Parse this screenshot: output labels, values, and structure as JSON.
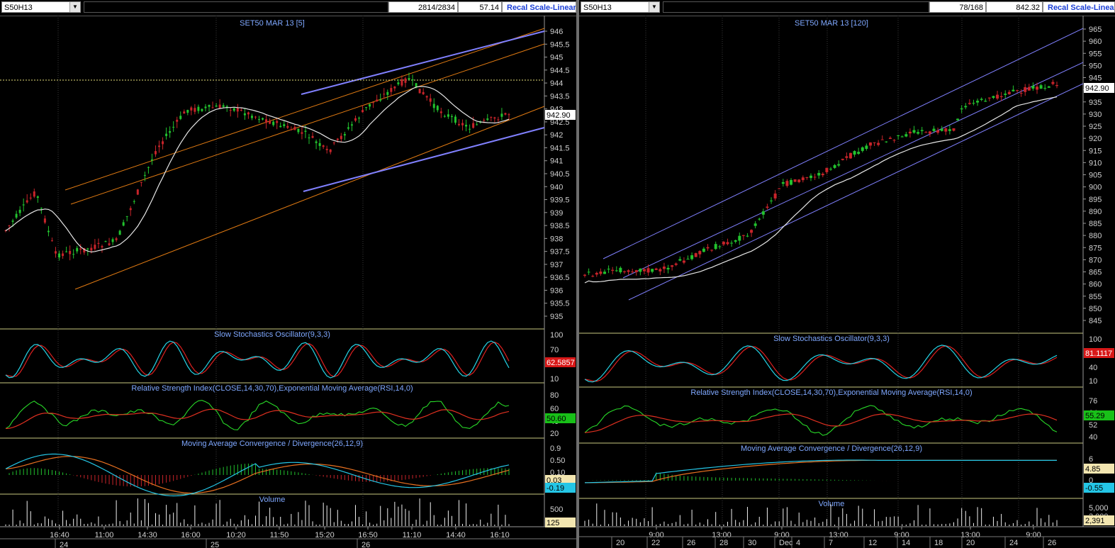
{
  "left": {
    "symbol": "S50H13",
    "bars_count": "2814/2834",
    "readout": "57.14",
    "recal_label": "Recal Scale-Linear",
    "price_title": "SET50 MAR 13   [5]",
    "last_price": "942.90",
    "price_axis": [
      "946",
      "945.5",
      "945",
      "944.5",
      "944",
      "943.5",
      "943",
      "942.5",
      "942",
      "941.5",
      "941",
      "940.5",
      "940",
      "939.5",
      "939",
      "938.5",
      "938",
      "937.5",
      "937",
      "936.5",
      "936",
      "935.5",
      "935"
    ],
    "stoch_title": "Slow Stochastics Oscillator(9,3,3)",
    "stoch_axis": [
      "100",
      "70",
      "40",
      "10"
    ],
    "stoch_value": "62.5857",
    "rsi_title": "Relative Strength Index(CLOSE,14,30,70),Exponential Moving Average(RSI,14,0)",
    "rsi_axis": [
      "80",
      "60",
      "40",
      "20"
    ],
    "rsi_value": "50.60",
    "macd_title": "Moving Average Convergence / Divergence(26,12,9)",
    "macd_axis": [
      "0.9",
      "0.50",
      "0.10"
    ],
    "macd_value1": "0.03",
    "macd_value2": "-0.19",
    "volume_title": "Volume",
    "volume_axis": [
      "500"
    ],
    "volume_value": "125",
    "time_labels": [
      "16:40",
      "11:00",
      "14:30",
      "16:00",
      "10:20",
      "11:50",
      "15:20",
      "16:50",
      "11:10",
      "14:40",
      "16:10"
    ],
    "day_labels": [
      "24",
      "25",
      "26"
    ]
  },
  "right": {
    "symbol": "S50H13",
    "bars_count": "78/168",
    "readout": "842.32",
    "recal_label": "Recal Scale-Linea",
    "price_title": "SET50 MAR 13   [120]",
    "last_price": "942.90",
    "price_axis": [
      "965",
      "960",
      "955",
      "950",
      "945",
      "940",
      "935",
      "930",
      "925",
      "920",
      "915",
      "910",
      "905",
      "900",
      "895",
      "890",
      "885",
      "880",
      "875",
      "870",
      "865",
      "860",
      "855",
      "850",
      "845"
    ],
    "stoch_title": "Slow Stochastics Oscillator(9,3,3)",
    "stoch_axis": [
      "100",
      "70",
      "40",
      "10"
    ],
    "stoch_value": "81.1117",
    "rsi_title": "Relative Strength Index(CLOSE,14,30,70),Exponential Moving Average(RSI,14,0)",
    "rsi_axis": [
      "76",
      "64",
      "52",
      "40"
    ],
    "rsi_value": "55.29",
    "macd_title": "Moving Average Convergence / Divergence(26,12,9)",
    "macd_axis": [
      "6",
      "0"
    ],
    "macd_value1": "4.85",
    "macd_value2": "-0.55",
    "volume_title": "Volume",
    "volume_axis": [
      "5,000",
      "3,000"
    ],
    "volume_value": "2,391",
    "time_labels": [
      "9:00",
      "13:00",
      "9:00",
      "13:00",
      "9:00",
      "13:00",
      "9:00"
    ],
    "day_labels": [
      "20",
      "22",
      "26",
      "28",
      "30",
      "Dec",
      "4",
      "7",
      "12",
      "14",
      "18",
      "20",
      "24",
      "26"
    ]
  },
  "colors": {
    "up": "#22c32e",
    "down": "#c8242a",
    "ma": "#e6e6e6",
    "channel_orange": "#e07a12",
    "channel_blue": "#8080ff",
    "stoch_k": "#24d4e6",
    "stoch_d": "#e02020",
    "rsi": "#28d828",
    "rsi_ema": "#e03020",
    "macd_line": "#24c6e6",
    "macd_signal": "#e87020",
    "panel_border": "#c8c880",
    "axis_text": "#d0d0d0",
    "title_text": "#7fa8ff"
  }
}
